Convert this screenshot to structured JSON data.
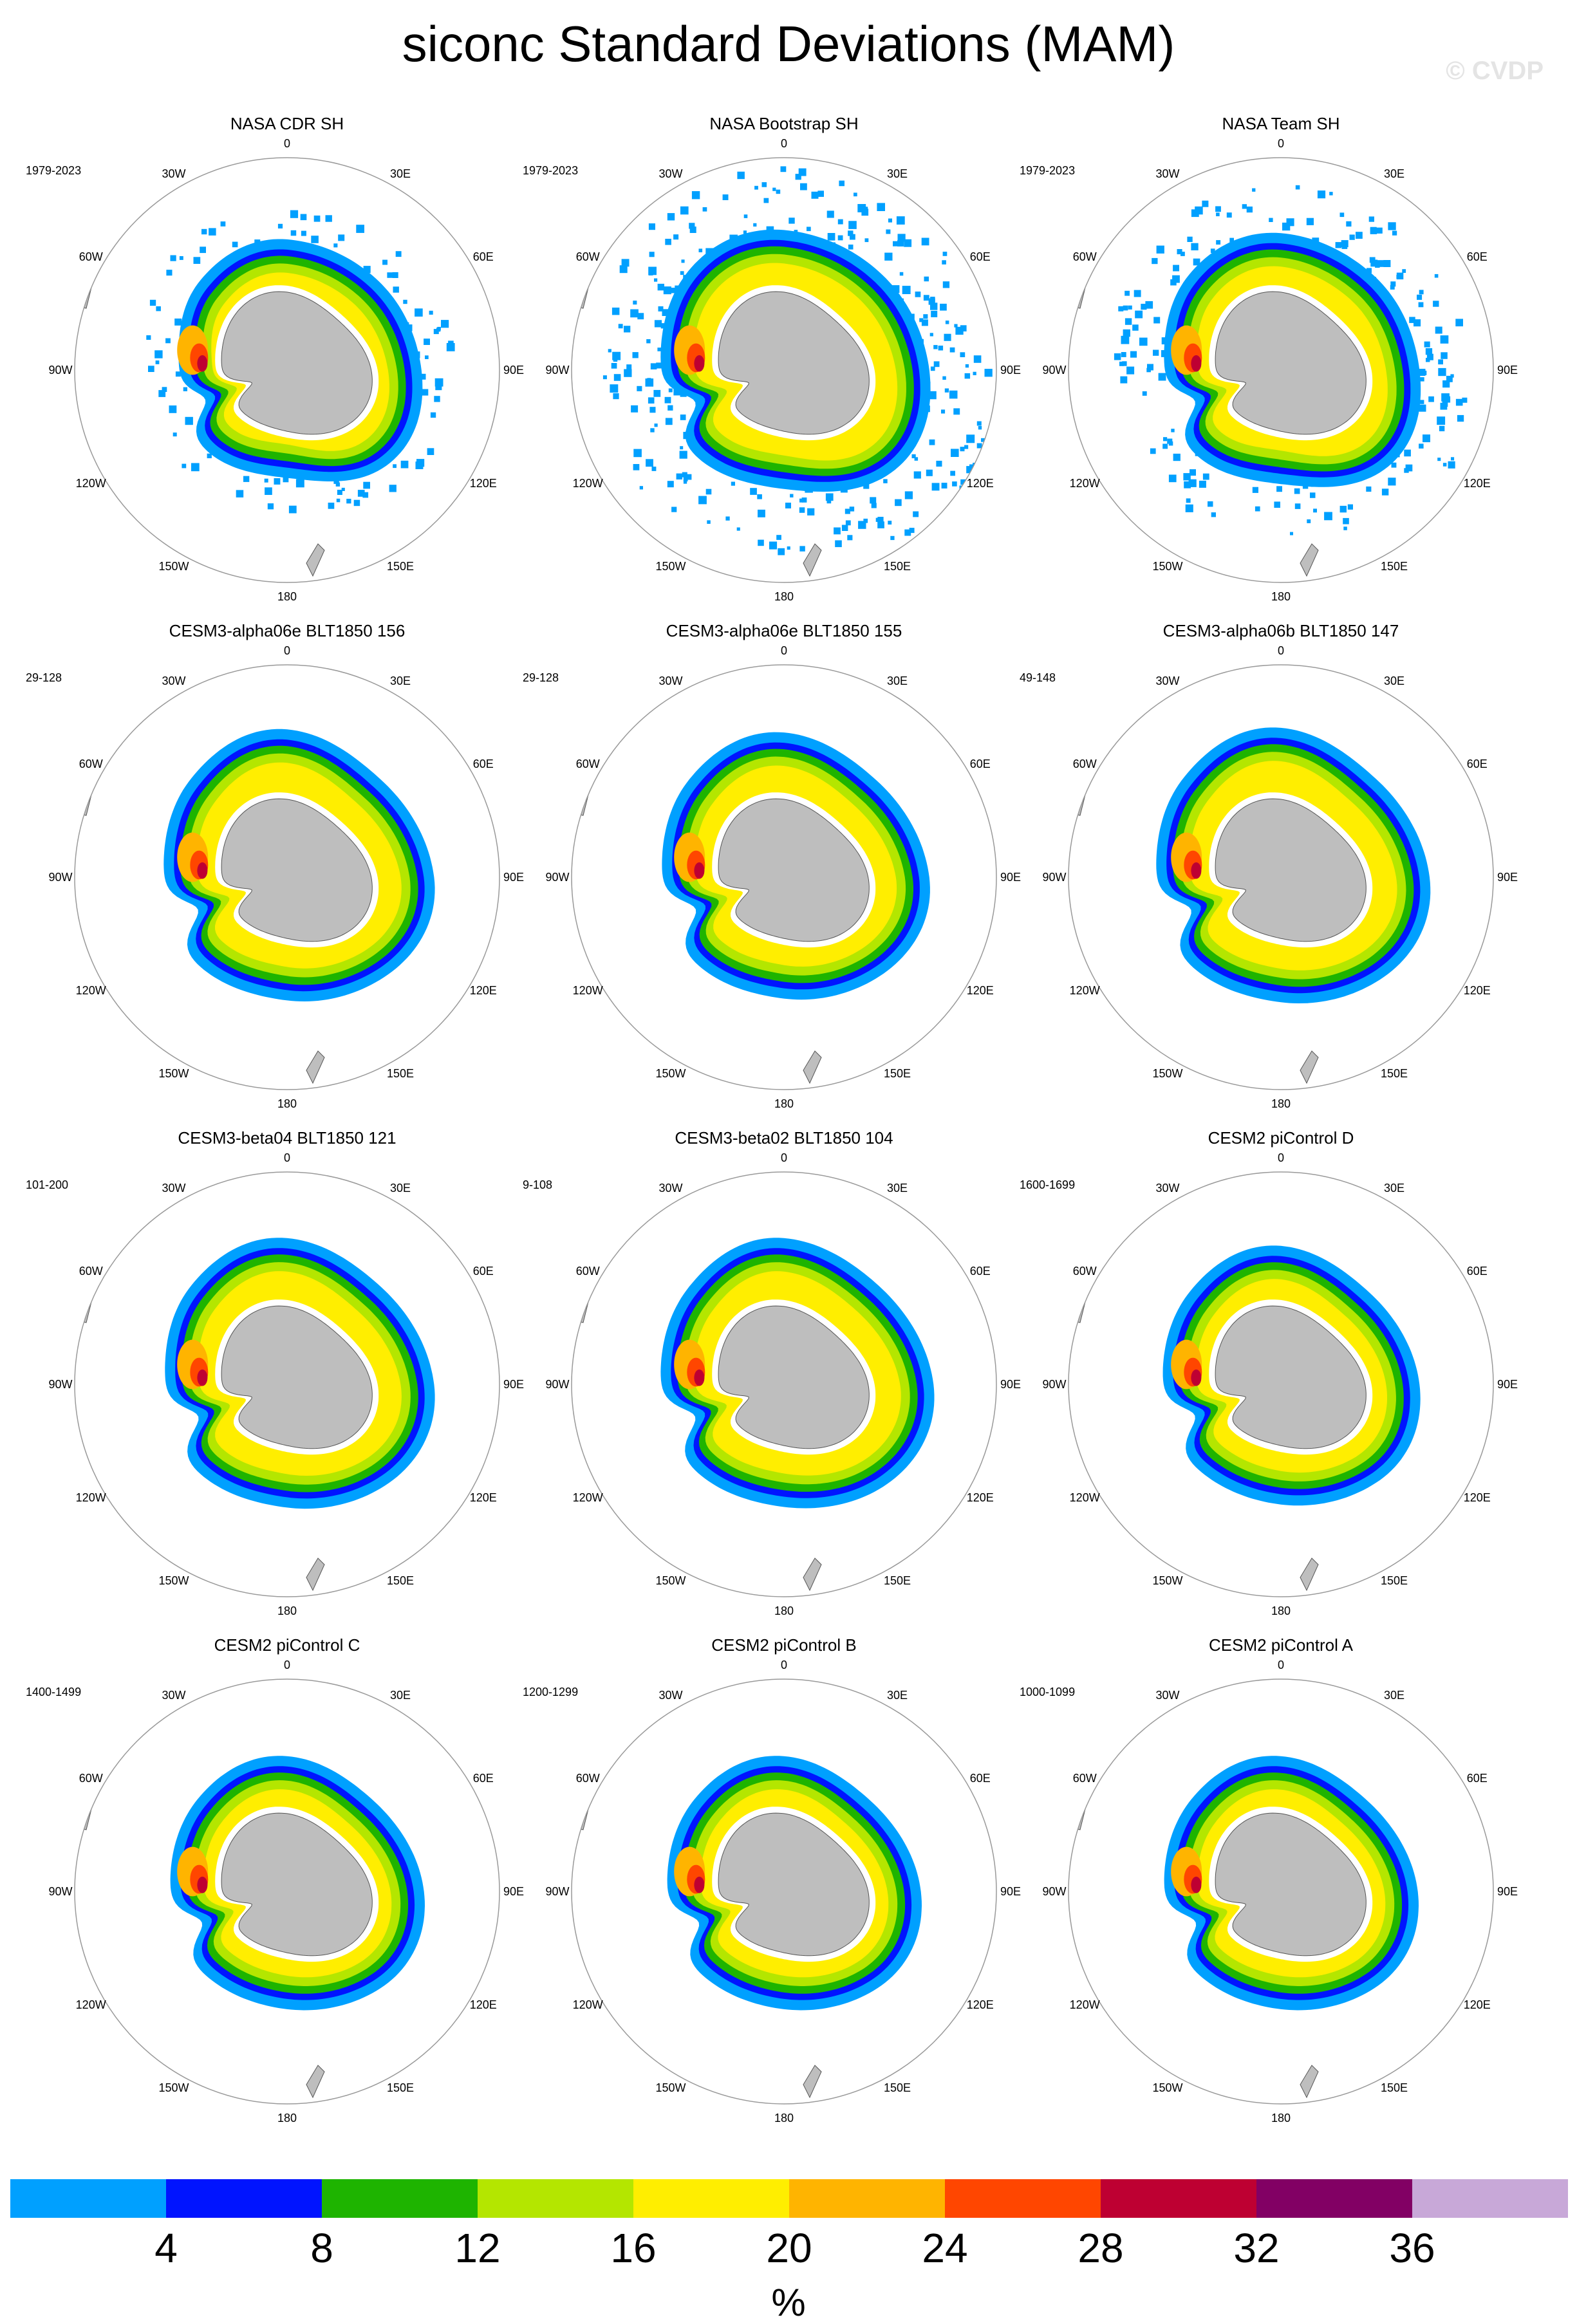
{
  "title": "siconc Standard Deviations (MAM)",
  "watermark": "© CVDP",
  "map_labels": {
    "lon_top": "0",
    "lon_30e": "30E",
    "lon_60e": "60E",
    "lon_90e": "90E",
    "lon_120e": "120E",
    "lon_150e": "150E",
    "lon_180": "180",
    "lon_150w": "150W",
    "lon_120w": "120W",
    "lon_90w": "90W",
    "lon_60w": "60W",
    "lon_30w": "30W"
  },
  "colors": {
    "land": "#bebebe",
    "coast": "#555555",
    "circle": "#999999"
  },
  "chart_data": {
    "type": "polar-stereographic map panels (Southern Hemisphere)",
    "variable": "siconc",
    "season": "MAM",
    "statistic": "Standard Deviations",
    "panels": [
      {
        "title": "NASA CDR SH",
        "years": "1979-2023",
        "extent": [
          0.97,
          1.05,
          0.9,
          1.0,
          0.85,
          0.95,
          1.0,
          1.05
        ],
        "speckle": 0.4
      },
      {
        "title": "NASA Bootstrap SH",
        "years": "1979-2023",
        "extent": [
          1.1,
          1.18,
          1.08,
          1.15,
          1.08,
          1.12,
          1.12,
          1.18
        ],
        "speckle": 1.0
      },
      {
        "title": "NASA Team SH",
        "years": "1979-2023",
        "extent": [
          1.02,
          1.12,
          1.0,
          1.1,
          0.98,
          1.05,
          1.08,
          1.12
        ],
        "speckle": 0.7
      },
      {
        "title": "CESM3-alpha06e BLT1850 156",
        "years": "29-128",
        "extent": [
          1.12,
          1.08,
          1.15,
          1.18,
          1.08,
          1.12,
          1.22,
          1.16
        ],
        "speckle": 0
      },
      {
        "title": "CESM3-alpha06e BLT1850 155",
        "years": "29-128",
        "extent": [
          1.1,
          1.06,
          1.12,
          1.15,
          1.06,
          1.1,
          1.18,
          1.14
        ],
        "speckle": 0
      },
      {
        "title": "CESM3-alpha06b BLT1850 147",
        "years": "49-148",
        "extent": [
          1.14,
          1.12,
          1.18,
          1.2,
          1.1,
          1.14,
          1.24,
          1.18
        ],
        "speckle": 0
      },
      {
        "title": "CESM3-beta04 BLT1850 121",
        "years": "101-200",
        "extent": [
          1.12,
          1.1,
          1.15,
          1.18,
          1.06,
          1.12,
          1.2,
          1.16
        ],
        "speckle": 0
      },
      {
        "title": "CESM3-beta02 BLT1850 104",
        "years": "9-108",
        "extent": [
          1.15,
          1.12,
          1.14,
          1.16,
          1.08,
          1.1,
          1.2,
          1.18
        ],
        "speckle": 0
      },
      {
        "title": "CESM2 piControl D",
        "years": "1600-1699",
        "extent": [
          1.02,
          1.05,
          1.1,
          1.08,
          1.0,
          1.02,
          1.1,
          1.05
        ],
        "speckle": 0
      },
      {
        "title": "CESM2 piControl C",
        "years": "1400-1499",
        "extent": [
          1.0,
          1.02,
          1.06,
          1.05,
          0.98,
          1.0,
          1.06,
          1.02
        ],
        "speckle": 0
      },
      {
        "title": "CESM2 piControl B",
        "years": "1200-1299",
        "extent": [
          1.0,
          1.02,
          1.06,
          1.05,
          0.98,
          1.0,
          1.06,
          1.02
        ],
        "speckle": 0
      },
      {
        "title": "CESM2 piControl A",
        "years": "1000-1099",
        "extent": [
          1.0,
          1.02,
          1.06,
          1.05,
          0.98,
          1.0,
          1.06,
          1.02
        ],
        "speckle": 0
      }
    ],
    "colorbar": {
      "unit": "%",
      "tick_labels": [
        "4",
        "8",
        "12",
        "16",
        "20",
        "24",
        "28",
        "32",
        "36"
      ],
      "colors": [
        "#00a0ff",
        "#0014ff",
        "#1eb400",
        "#b4e600",
        "#ffee00",
        "#ffb400",
        "#ff4600",
        "#be0032",
        "#820064",
        "#c8a8d8"
      ]
    }
  }
}
